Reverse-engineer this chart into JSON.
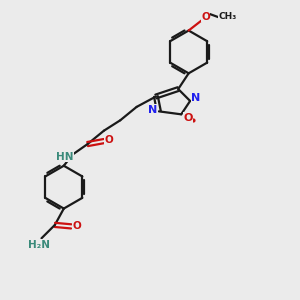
{
  "bg_color": "#ebebeb",
  "bond_color": "#1a1a1a",
  "N_color": "#2020ee",
  "O_color": "#cc1111",
  "NH_color": "#3a8a7a",
  "figsize": [
    3.0,
    3.0
  ],
  "dpi": 100,
  "xlim": [
    0,
    10
  ],
  "ylim": [
    0,
    10
  ]
}
